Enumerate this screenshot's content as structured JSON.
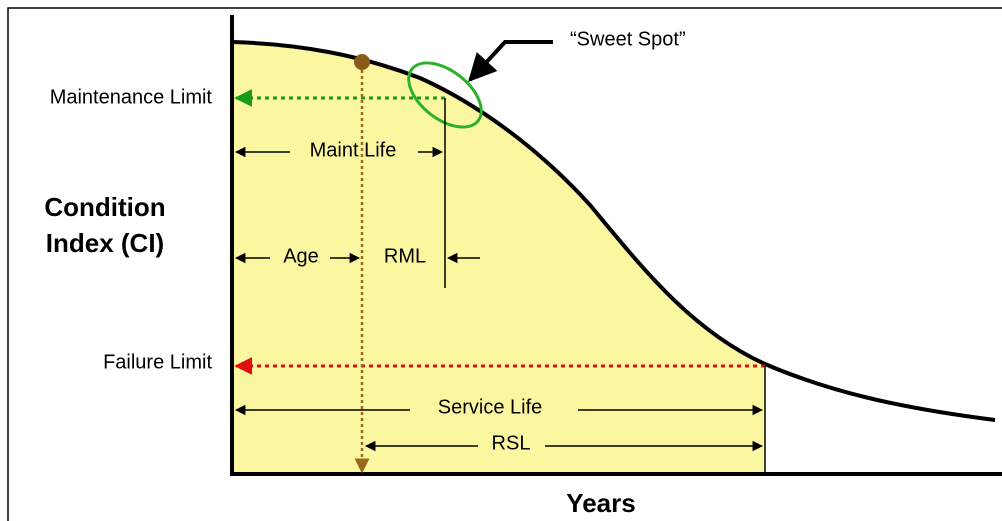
{
  "labels": {
    "sweet_spot": "“Sweet Spot”",
    "maintenance_limit": "Maintenance Limit",
    "y_axis": [
      "Condition",
      "Index (CI)"
    ],
    "maint_life": "Maint Life",
    "age": "Age",
    "rml": "RML",
    "failure_limit": "Failure Limit",
    "service_life": "Service Life",
    "rsl": "RSL",
    "x_axis": "Years"
  }
}
